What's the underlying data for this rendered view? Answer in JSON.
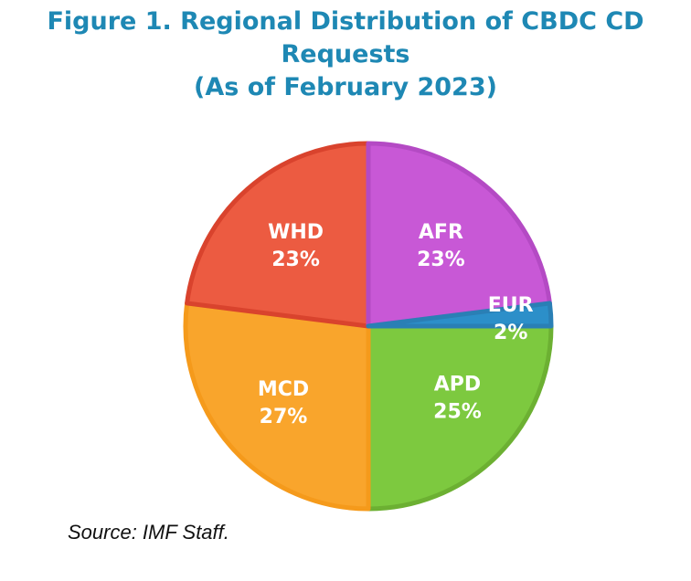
{
  "chart_data": {
    "type": "pie",
    "title_lines": [
      "Figure 1. Regional Distribution of CBDC CD",
      "Requests",
      "(As of February 2023)"
    ],
    "slices": [
      {
        "label": "APD",
        "value_label": "25%",
        "value": 25,
        "color": "#7DC93F",
        "edge": "#6CB032"
      },
      {
        "label": "MCD",
        "value_label": "27%",
        "value": 27,
        "color": "#F9A52C",
        "edge": "#F59A1B"
      },
      {
        "label": "WHD",
        "value_label": "23%",
        "value": 23,
        "color": "#EC5B41",
        "edge": "#D9432D"
      },
      {
        "label": "AFR",
        "value_label": "23%",
        "value": 23,
        "color": "#C858D6",
        "edge": "#B44AC4"
      },
      {
        "label": "EUR",
        "value_label": "2%",
        "value": 2,
        "color": "#2C8FC9",
        "edge": "#2A7FB5"
      }
    ],
    "start_angle_deg": 0,
    "direction": "clockwise",
    "legend": "none"
  },
  "source": "Source: IMF Staff."
}
